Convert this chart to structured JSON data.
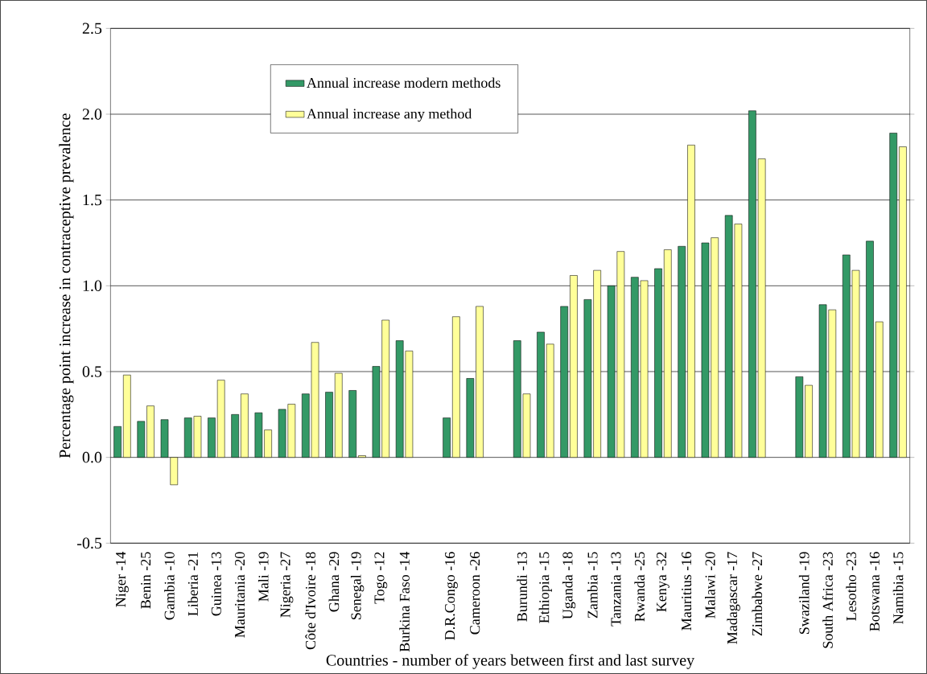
{
  "chart_data": {
    "type": "bar",
    "categories": [
      "Niger -14",
      "Benin -25",
      "Gambia -10",
      "Liberia -21",
      "Guinea -13",
      "Mauritania -20",
      "Mali -19",
      "Nigeria -27",
      "Côte d'Ivoire -18",
      "Ghana -29",
      "Senegal -19",
      "Togo -12",
      "Burkina Faso -14",
      null,
      "D.R.Congo -16",
      "Cameroon -26",
      null,
      "Burundi -13",
      "Ethiopia -15",
      "Uganda -18",
      "Zambia -15",
      "Tanzania -13",
      "Rwanda -25",
      "Kenya -32",
      "Mauritius -16",
      "Malawi -20",
      "Madagascar -17",
      "Zimbabwe -27",
      null,
      "Swaziland -19",
      "South Africa -23",
      "Lesotho -23",
      "Botswana -16",
      "Namibia -15"
    ],
    "series": [
      {
        "name": "Annual increase modern methods",
        "color": "#339966",
        "values": [
          0.18,
          0.21,
          0.22,
          0.23,
          0.23,
          0.25,
          0.26,
          0.28,
          0.37,
          0.38,
          0.39,
          0.53,
          0.68,
          null,
          0.23,
          0.46,
          null,
          0.68,
          0.73,
          0.88,
          0.92,
          1.0,
          1.05,
          1.1,
          1.23,
          1.25,
          1.41,
          2.02,
          null,
          0.47,
          0.89,
          1.18,
          1.26,
          1.89
        ]
      },
      {
        "name": "Annual increase any method",
        "color": "#ffff99",
        "values": [
          0.48,
          0.3,
          -0.16,
          0.24,
          0.45,
          0.37,
          0.16,
          0.31,
          0.67,
          0.49,
          0.01,
          0.8,
          0.62,
          null,
          0.82,
          0.88,
          null,
          0.37,
          0.66,
          1.06,
          1.09,
          1.2,
          1.03,
          1.21,
          1.82,
          1.28,
          1.36,
          1.74,
          null,
          0.42,
          0.86,
          1.09,
          0.79,
          1.81
        ]
      }
    ],
    "xlabel": "Countries - number of years between first and last survey",
    "ylabel": "Percentage point increase in contraceptive prevalence",
    "ylim": [
      -0.5,
      2.5
    ],
    "yticks": [
      {
        "value": -0.5,
        "label": "-0.5"
      },
      {
        "value": 0,
        "label": "0.0"
      },
      {
        "value": 0.5,
        "label": "0.5"
      },
      {
        "value": 1,
        "label": "1.0"
      },
      {
        "value": 1.5,
        "label": "1.5"
      },
      {
        "value": 2,
        "label": "2.0"
      },
      {
        "value": 2.5,
        "label": "2.5"
      }
    ],
    "grid": "y",
    "legend": "top"
  }
}
